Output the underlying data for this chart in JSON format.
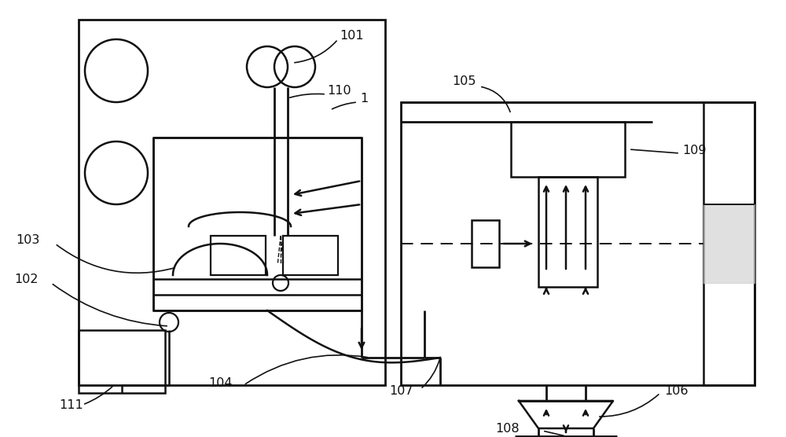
{
  "bg_color": "#ffffff",
  "line_color": "#111111",
  "lw": 1.8,
  "fig_width": 10.0,
  "fig_height": 5.56,
  "label_fontsize": 11.5
}
